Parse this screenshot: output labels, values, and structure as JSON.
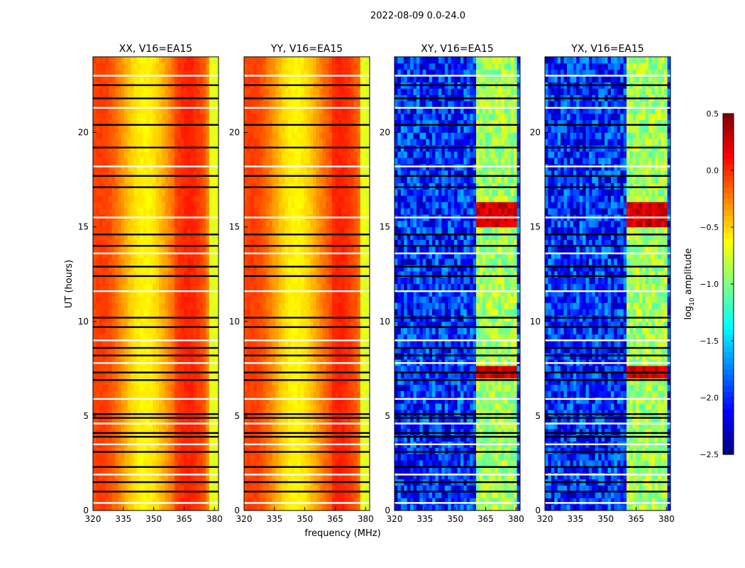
{
  "figure": {
    "suptitle": "2022-08-09 0.0-24.0",
    "ylabel": "UT (hours)",
    "xlabel": "frequency (MHz)"
  },
  "chart_data": [
    {
      "type": "heatmap",
      "title": "XX, V16=EA15",
      "xlabel": "frequency (MHz)",
      "ylabel": "UT (hours)",
      "xlim": [
        320,
        382
      ],
      "ylim": [
        0,
        24
      ],
      "xticks": [
        320,
        335,
        350,
        365,
        380
      ],
      "yticks": [
        0,
        5,
        10,
        15,
        20
      ],
      "level_range_log10": [
        -0.6,
        -0.05
      ],
      "rfi_band_mhz": [
        361,
        376
      ],
      "high_edge_level_log10": -0.7
    },
    {
      "type": "heatmap",
      "title": "YY, V16=EA15",
      "xlabel": "frequency (MHz)",
      "ylabel": "",
      "xlim": [
        320,
        382
      ],
      "ylim": [
        0,
        24
      ],
      "xticks": [
        320,
        335,
        350,
        365,
        380
      ],
      "yticks": [
        0,
        5,
        10,
        15,
        20
      ],
      "level_range_log10": [
        -0.6,
        -0.05
      ],
      "rfi_band_mhz": [
        363,
        378
      ],
      "high_edge_level_log10": -0.7
    },
    {
      "type": "heatmap",
      "title": "XY, V16=EA15",
      "xlabel": "frequency (MHz)",
      "ylabel": "",
      "xlim": [
        320,
        382
      ],
      "ylim": [
        0,
        24
      ],
      "xticks": [
        320,
        335,
        350,
        365,
        380
      ],
      "yticks": [
        0,
        5,
        10,
        15,
        20
      ],
      "level_range_log10": [
        -2.4,
        -1.6
      ],
      "rfi_band_mhz": [
        361,
        380
      ],
      "rfi_level_log10": -0.9,
      "burst_hours": [
        [
          6.9,
          7.8
        ],
        [
          15.0,
          16.2
        ]
      ]
    },
    {
      "type": "heatmap",
      "title": "YX, V16=EA15",
      "xlabel": "frequency (MHz)",
      "ylabel": "",
      "xlim": [
        320,
        382
      ],
      "ylim": [
        0,
        24
      ],
      "xticks": [
        320,
        335,
        350,
        365,
        380
      ],
      "yticks": [
        0,
        5,
        10,
        15,
        20
      ],
      "level_range_log10": [
        -2.4,
        -1.6
      ],
      "rfi_band_mhz": [
        361,
        380
      ],
      "rfi_level_log10": -0.9,
      "burst_hours": [
        [
          6.9,
          7.8
        ],
        [
          15.0,
          16.2
        ]
      ]
    }
  ],
  "flagged_hours": [
    0.4,
    1.0,
    1.5,
    1.9,
    2.3,
    3.1,
    3.5,
    3.9,
    4.1,
    4.6,
    4.9,
    5.1,
    5.9,
    6.9,
    7.3,
    7.8,
    8.2,
    8.6,
    9.0,
    9.7,
    10.2,
    11.6,
    12.4,
    12.9,
    13.6,
    14.0,
    14.6,
    15.5,
    17.1,
    17.7,
    18.2,
    19.2,
    20.4,
    21.3,
    21.8,
    22.5,
    23.0
  ],
  "colorbar": {
    "label_main": "log",
    "label_sub": "10",
    "label_tail": " amplitude",
    "range": [
      -2.5,
      0.5
    ],
    "ticks": [
      0.5,
      0.0,
      -0.5,
      -1.0,
      -1.5,
      -2.0,
      -2.5
    ],
    "tick_labels": [
      "0.5",
      "0.0",
      "−0.5",
      "−1.0",
      "−1.5",
      "−2.0",
      "−2.5"
    ],
    "colormap": "jet"
  }
}
